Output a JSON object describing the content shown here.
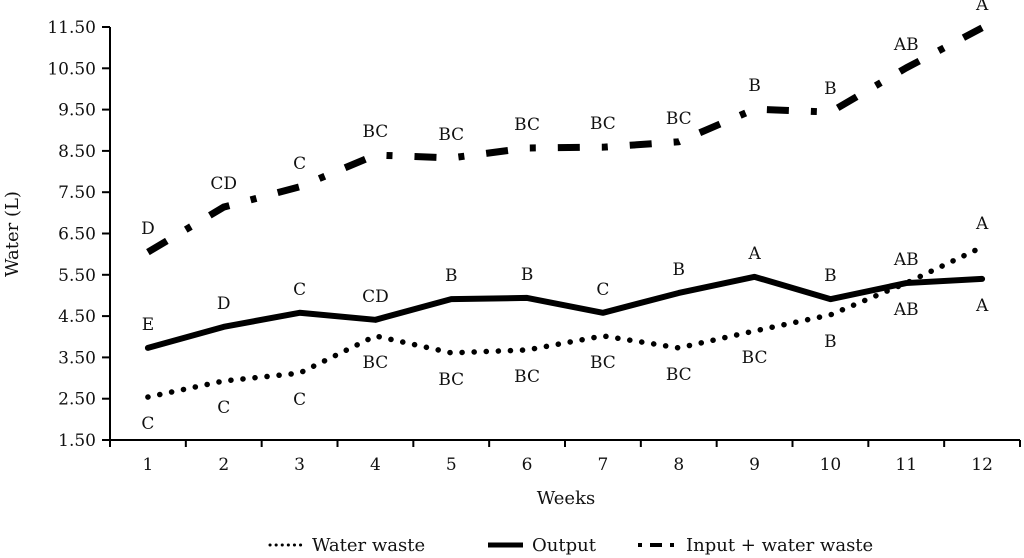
{
  "chart_data": {
    "type": "line",
    "title": "",
    "xlabel": "Weeks",
    "ylabel": "Water (L)",
    "x": [
      1,
      2,
      3,
      4,
      5,
      6,
      7,
      8,
      9,
      10,
      11,
      12
    ],
    "x_tick_labels": [
      "1",
      "2",
      "3",
      "4",
      "5",
      "6",
      "7",
      "8",
      "9",
      "10",
      "11",
      "12"
    ],
    "ylim": [
      1.5,
      11.5
    ],
    "y_ticks": [
      1.5,
      2.5,
      3.5,
      4.5,
      5.5,
      6.5,
      7.5,
      8.5,
      9.5,
      10.5,
      11.5
    ],
    "y_tick_labels": [
      "1.50",
      "2.50",
      "3.50",
      "4.50",
      "5.50",
      "6.50",
      "7.50",
      "8.50",
      "9.50",
      "10.50",
      "11.50"
    ],
    "grid": false,
    "legend_position": "bottom",
    "series": [
      {
        "name": "Water waste",
        "style": "dotted",
        "color": "#000000",
        "values": [
          2.54,
          2.93,
          3.12,
          4.02,
          3.61,
          3.68,
          4.02,
          3.73,
          4.14,
          4.53,
          5.3,
          6.17
        ],
        "significance_labels": [
          "C",
          "C",
          "C",
          "BC",
          "BC",
          "BC",
          "BC",
          "BC",
          "BC",
          "B",
          "AB",
          "A"
        ],
        "label_placement": [
          "below",
          "below",
          "below",
          "below",
          "below",
          "below",
          "below",
          "below",
          "below",
          "below",
          "above",
          "above"
        ]
      },
      {
        "name": "Output",
        "style": "solid",
        "color": "#000000",
        "values": [
          3.73,
          4.24,
          4.58,
          4.41,
          4.91,
          4.94,
          4.58,
          5.06,
          5.45,
          4.91,
          5.3,
          5.4
        ],
        "significance_labels": [
          "E",
          "D",
          "C",
          "CD",
          "B",
          "B",
          "C",
          "B",
          "A",
          "B",
          "AB",
          "A"
        ],
        "label_placement": [
          "above",
          "above",
          "above",
          "above",
          "above",
          "above",
          "above",
          "above",
          "above",
          "above",
          "below",
          "below"
        ]
      },
      {
        "name": "Input + water waste",
        "style": "dash-dot",
        "color": "#000000",
        "values": [
          6.05,
          7.14,
          7.63,
          8.4,
          8.33,
          8.57,
          8.59,
          8.72,
          9.51,
          9.44,
          10.51,
          11.48
        ],
        "significance_labels": [
          "D",
          "CD",
          "C",
          "BC",
          "BC",
          "BC",
          "BC",
          "BC",
          "B",
          "B",
          "AB",
          "A"
        ],
        "label_placement": [
          "above",
          "above",
          "above",
          "above",
          "above",
          "above",
          "above",
          "above",
          "above",
          "above",
          "above",
          "above"
        ]
      }
    ]
  }
}
